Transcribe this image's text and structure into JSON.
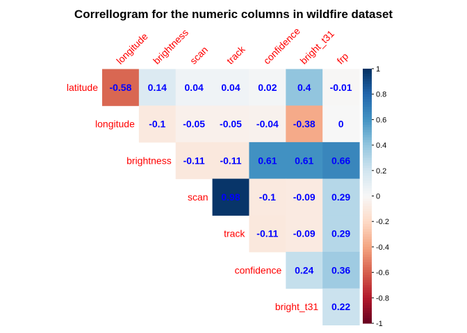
{
  "chart_data": {
    "type": "heatmap",
    "title": "Correllogram for the numeric columns in wildfire dataset",
    "layout": "upper-triangle",
    "rows": [
      "latitude",
      "longitude",
      "brightness",
      "scan",
      "track",
      "confidence",
      "bright_t31"
    ],
    "columns": [
      "longitude",
      "brightness",
      "scan",
      "track",
      "confidence",
      "bright_t31",
      "frp"
    ],
    "values": [
      [
        -0.58,
        0.14,
        0.04,
        0.04,
        0.02,
        0.4,
        -0.01
      ],
      [
        null,
        -0.1,
        -0.05,
        -0.05,
        -0.04,
        -0.38,
        0
      ],
      [
        null,
        null,
        -0.11,
        -0.11,
        0.61,
        0.61,
        0.66
      ],
      [
        null,
        null,
        null,
        0.98,
        -0.1,
        -0.09,
        0.29
      ],
      [
        null,
        null,
        null,
        null,
        -0.11,
        -0.09,
        0.29
      ],
      [
        null,
        null,
        null,
        null,
        null,
        0.24,
        0.36
      ],
      [
        null,
        null,
        null,
        null,
        null,
        null,
        0.22
      ]
    ],
    "value_range": [
      -1,
      1
    ],
    "colorbar": {
      "ticks": [
        "-1",
        "-0.8",
        "-0.6",
        "-0.4",
        "-0.2",
        "0",
        "0.2",
        "0.4",
        "0.6",
        "0.8",
        "1"
      ],
      "placement": "right"
    },
    "colors": {
      "negative_end": "#67001f",
      "neutral": "#f7f7f7",
      "positive_end": "#053061",
      "label_text": "#ff0000",
      "value_text": "#0000ff"
    }
  }
}
